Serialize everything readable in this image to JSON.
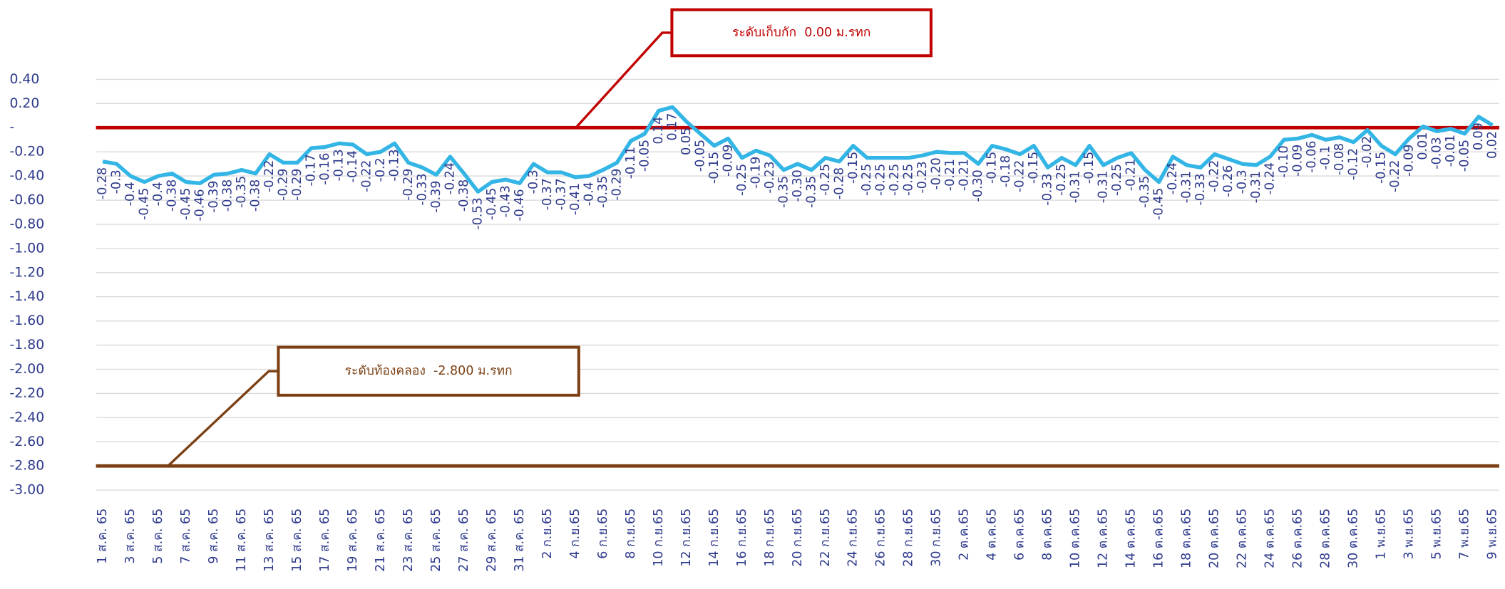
{
  "chart_data": {
    "type": "line",
    "color": "#33b5e5",
    "label_color": "#2e3a8c",
    "grid": true,
    "ylim": [
      -3.0,
      0.4
    ],
    "yticks": [
      {
        "value": 0.4,
        "label": "0.40"
      },
      {
        "value": 0.2,
        "label": "0.20"
      },
      {
        "value": 0,
        "label": "-"
      },
      {
        "value": -0.2,
        "label": "-0.20"
      },
      {
        "value": -0.4,
        "label": "-0.40"
      },
      {
        "value": -0.6,
        "label": "-0.60"
      },
      {
        "value": -0.8,
        "label": "-0.80"
      },
      {
        "value": -1.0,
        "label": "-1.00"
      },
      {
        "value": -1.2,
        "label": "-1.20"
      },
      {
        "value": -1.4,
        "label": "-1.40"
      },
      {
        "value": -1.6,
        "label": "-1.60"
      },
      {
        "value": -1.8,
        "label": "-1.80"
      },
      {
        "value": -2.0,
        "label": "-2.00"
      },
      {
        "value": -2.2,
        "label": "-2.20"
      },
      {
        "value": -2.4,
        "label": "-2.40"
      },
      {
        "value": -2.6,
        "label": "-2.60"
      },
      {
        "value": -2.8,
        "label": "-2.80"
      },
      {
        "value": -3.0,
        "label": "-3.00"
      }
    ],
    "categories": [
      "1 ส.ค. 65",
      null,
      "3 ส.ค. 65",
      null,
      "5 ส.ค. 65",
      null,
      "7 ส.ค. 65",
      null,
      "9 ส.ค. 65",
      null,
      "11 ส.ค. 65",
      null,
      "13 ส.ค. 65",
      null,
      "15 ส.ค. 65",
      null,
      "17 ส.ค. 65",
      null,
      "19 ส.ค. 65",
      null,
      "21 ส.ค. 65",
      null,
      "23 ส.ค. 65",
      null,
      "25 ส.ค. 65",
      null,
      "27 ส.ค. 65",
      null,
      "29 ส.ค. 65",
      null,
      "31 ส.ค. 65",
      null,
      "2 ก.ย.65",
      null,
      "4 ก.ย.65",
      null,
      "6 ก.ย.65",
      null,
      "8 ก.ย.65",
      null,
      "10 ก.ย.65",
      null,
      "12 ก.ย.65",
      null,
      "14 ก.ย.65",
      null,
      "16 ก.ย.65",
      null,
      "18 ก.ย.65",
      null,
      "20 ก.ย.65",
      null,
      "22 ก.ย.65",
      null,
      "24 ก.ย.65",
      null,
      "26 ก.ย.65",
      null,
      "28 ก.ย.65",
      null,
      "30 ก.ย.65",
      null,
      "2 ต.ค.65",
      null,
      "4 ต.ค.65",
      null,
      "6 ต.ค.65",
      null,
      "8 ต.ค.65",
      null,
      "10 ต.ค.65",
      null,
      "12 ต.ค.65",
      null,
      "14 ต.ค.65",
      null,
      "16 ต.ค.65",
      null,
      "18 ต.ค.65",
      null,
      "20 ต.ค.65",
      null,
      "22 ต.ค.65",
      null,
      "24 ต.ค.65",
      null,
      "26 ต.ค.65",
      null,
      "28 ต.ค.65",
      null,
      "30 ต.ค.65",
      null,
      "1 พ.ย.65",
      null,
      "3 พ.ย.65",
      null,
      "5 พ.ย.65",
      null,
      "7 พ.ย.65",
      null,
      "9 พ.ย.65"
    ],
    "values": [
      -0.28,
      -0.3,
      -0.4,
      -0.45,
      -0.4,
      -0.38,
      -0.45,
      -0.46,
      -0.39,
      -0.38,
      -0.35,
      -0.38,
      -0.22,
      -0.29,
      -0.29,
      -0.17,
      -0.16,
      -0.13,
      -0.14,
      -0.22,
      -0.2,
      -0.13,
      -0.29,
      -0.33,
      -0.39,
      -0.24,
      -0.38,
      -0.53,
      -0.45,
      -0.43,
      -0.46,
      -0.3,
      -0.37,
      -0.37,
      -0.41,
      -0.4,
      -0.35,
      -0.29,
      -0.11,
      -0.05,
      0.14,
      0.17,
      0.05,
      -0.05,
      -0.15,
      -0.09,
      -0.25,
      -0.19,
      -0.23,
      -0.35,
      -0.3,
      -0.35,
      -0.25,
      -0.28,
      -0.15,
      -0.25,
      -0.25,
      -0.25,
      -0.25,
      -0.23,
      -0.2,
      -0.21,
      -0.21,
      -0.3,
      -0.15,
      -0.18,
      -0.22,
      -0.15,
      -0.33,
      -0.25,
      -0.31,
      -0.15,
      -0.31,
      -0.25,
      -0.21,
      -0.35,
      -0.45,
      -0.24,
      -0.31,
      -0.33,
      -0.22,
      -0.26,
      -0.3,
      -0.31,
      -0.24,
      -0.1,
      -0.09,
      -0.06,
      -0.1,
      -0.08,
      -0.12,
      -0.02,
      -0.15,
      -0.22,
      -0.09,
      0.01,
      -0.03,
      -0.01,
      -0.05,
      0.09,
      0.02
    ],
    "value_labels": [
      "-0.28",
      "-0.3",
      "-0.4",
      "-0.45",
      "-0.4",
      "-0.38",
      "-0.45",
      "-0.46",
      "-0.39",
      "-0.38",
      "-0.35",
      "-0.38",
      "-0.22",
      "-0.29",
      "-0.29",
      "-0.17",
      "-0.16",
      "-0.13",
      "-0.14",
      "-0.22",
      "-0.2",
      "-0.13",
      "-0.29",
      "-0.33",
      "-0.39",
      "-0.24",
      "-0.38",
      "-0.53",
      "-0.45",
      "-0.43",
      "-0.46",
      "-0.3",
      "-0.37",
      "-0.37",
      "-0.41",
      "-0.4",
      "-0.35",
      "-0.29",
      "-0.11",
      "-0.05",
      "0.14",
      "0.17",
      "0.05",
      "-0.05",
      "-0.15",
      "-0.09",
      "-0.25",
      "-0.19",
      "-0.23",
      "-0.35",
      "-0.30",
      "-0.35",
      "-0.25",
      "-0.28",
      "-0.15",
      "-0.25",
      "-0.25",
      "-0.25",
      "-0.25",
      "-0.23",
      "-0.20",
      "-0.21",
      "-0.21",
      "-0.30",
      "-0.15",
      "-0.18",
      "-0.22",
      "-0.15",
      "-0.33",
      "-0.25",
      "-0.31",
      "-0.15",
      "-0.31",
      "-0.25",
      "-0.21",
      "-0.35",
      "-0.45",
      "-0.24",
      "-0.31",
      "-0.33",
      "-0.22",
      "-0.26",
      "-0.3",
      "-0.31",
      "-0.24",
      "-0.10",
      "-0.09",
      "-0.06",
      "-0.1",
      "-0.08",
      "-0.12",
      "-0.02",
      "-0.15",
      "-0.22",
      "-0.09",
      "0.01",
      "-0.03",
      "-0.01",
      "-0.05",
      "0.09",
      "0.02"
    ],
    "reference_lines": [
      {
        "value": 0,
        "label": "ระดับเก็บกัก  0.00 ม.รทก",
        "color": "#c00000"
      },
      {
        "value": -2.8,
        "label": "ระดับท้องคลอง  -2.800 ม.รทก",
        "color": "#7b3f13"
      }
    ]
  }
}
